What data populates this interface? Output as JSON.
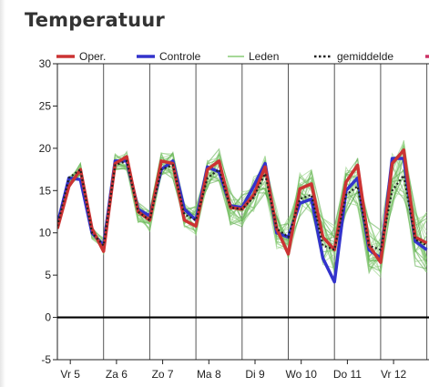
{
  "card": {
    "title": "Temperatuur"
  },
  "chart_data": {
    "type": "line",
    "title": "Temperatuur",
    "xlabel": "",
    "ylabel": "",
    "ylim": [
      -5,
      30
    ],
    "yticks": [
      -5,
      0,
      5,
      10,
      15,
      20,
      25,
      30
    ],
    "day_labels": [
      "Vr 5",
      "Za 6",
      "Zo 7",
      "Ma 8",
      "Di 9",
      "Wo 10",
      "Do 11",
      "Vr 12"
    ],
    "x_points_per_day": 4,
    "legend": {
      "placement": "top",
      "entries": [
        {
          "name": "Oper.",
          "color": "#cc3333"
        },
        {
          "name": "Controle",
          "color": "#3333cc"
        },
        {
          "name": "Leden",
          "color": "#88cc77"
        },
        {
          "name": "gemiddelde",
          "color": "#222222"
        }
      ]
    },
    "series": [
      {
        "name": "Oper.",
        "color": "#cc3333",
        "values": [
          10.5,
          15.5,
          17.5,
          10.5,
          7.8,
          18.2,
          19,
          12.5,
          11.5,
          18.5,
          18.2,
          11.5,
          10.8,
          17.5,
          18.5,
          13,
          12.8,
          14.5,
          17.8,
          10.5,
          7.5,
          15.2,
          15.8,
          9.5,
          8,
          16,
          18,
          8.5,
          6.5,
          18.2,
          19.8,
          9.5,
          8.8
        ]
      },
      {
        "name": "Controle",
        "color": "#3333cc",
        "values": [
          11,
          16.5,
          16.3,
          10,
          8.5,
          18.5,
          18.5,
          12.8,
          12,
          17.5,
          18.5,
          12.8,
          11.5,
          17.8,
          17.2,
          13.2,
          13,
          15.5,
          18.2,
          10,
          9.5,
          13.5,
          14,
          7,
          4.2,
          15,
          16.5,
          8,
          7,
          18.8,
          18.8,
          9,
          8
        ]
      },
      {
        "name": "gemiddelde",
        "color": "#222222",
        "values": [
          10.8,
          16.5,
          17.5,
          10,
          8.5,
          18,
          18.5,
          12.5,
          11.5,
          17.5,
          18,
          12.2,
          11.5,
          16.5,
          17.5,
          13,
          12.8,
          14.2,
          17,
          10.5,
          9.5,
          14,
          14.5,
          8.5,
          8,
          14.5,
          15.5,
          8.5,
          8,
          15,
          16.8,
          9.2,
          8.5
        ]
      },
      {
        "name": "Leden",
        "color": "#88cc77",
        "type": "ensemble",
        "values": [
          11,
          16,
          17.5,
          10,
          8.5,
          18.5,
          18.5,
          12.5,
          11.5,
          18,
          18,
          12,
          11.5,
          17,
          18,
          13,
          12.8,
          14.5,
          17,
          10.5,
          9.5,
          14.5,
          15,
          9,
          8,
          15,
          16,
          8.5,
          8,
          16,
          17.5,
          9.5,
          9
        ]
      }
    ]
  }
}
